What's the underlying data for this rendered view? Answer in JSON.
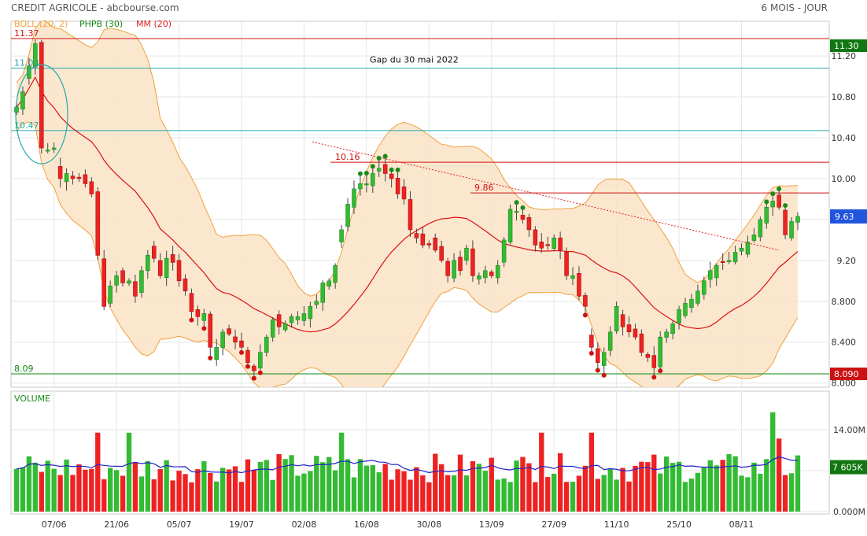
{
  "header": {
    "title": "CREDIT AGRICOLE - abcbourse.com",
    "period": "6 MOIS - JOUR"
  },
  "legend": [
    {
      "label": "BOLL (20, 2)",
      "color": "#f5a53d"
    },
    {
      "label": "PHPB (30)",
      "color": "#1a8a1a"
    },
    {
      "label": "MM (20)",
      "color": "#dd2222"
    }
  ],
  "colors": {
    "up": "#33bb33",
    "down": "#ee2222",
    "boll_fill": "#fae3c6",
    "boll_line": "#f0a040",
    "ma": "#dd1111",
    "vol_ma": "#2222cc",
    "resistance": "#cc1111",
    "support": "#118811",
    "gap": "#22aaaa"
  },
  "chart_data": [
    {
      "type": "candlestick",
      "title": "",
      "ylim": [
        8.09,
        11.37
      ],
      "y_ticks": [
        "8.000",
        "8.400",
        "8.800",
        "9.20",
        "9.60",
        "10.00",
        "10.40",
        "10.80",
        "11.20"
      ],
      "x_ticks": [
        "07/06",
        "21/06",
        "05/07",
        "19/07",
        "02/08",
        "16/08",
        "30/08",
        "13/09",
        "27/09",
        "11/10",
        "25/10",
        "08/11"
      ],
      "price_labels": {
        "last": "9.63",
        "high_line": "11.30",
        "low_line": "8.090"
      },
      "levels": [
        {
          "label": "11.37",
          "value": 11.37,
          "color": "#cc1111"
        },
        {
          "label": "11.08",
          "value": 11.08,
          "color": "#22aaaa"
        },
        {
          "label": "10.47",
          "value": 10.47,
          "color": "#22aaaa"
        },
        {
          "label": "10.16",
          "value": 10.16,
          "color": "#cc1111"
        },
        {
          "label": "9.86",
          "value": 9.86,
          "color": "#cc1111"
        },
        {
          "label": "8.09",
          "value": 8.09,
          "color": "#118811"
        }
      ],
      "annotations": [
        "Gap du 30 mai 2022"
      ],
      "series_close": [
        10.7,
        10.85,
        11.1,
        11.32,
        10.3,
        10.28,
        10.3,
        10.0,
        10.05,
        10.0,
        10.0,
        9.95,
        9.85,
        9.25,
        8.75,
        8.95,
        9.05,
        8.98,
        9.0,
        8.85,
        9.1,
        9.25,
        9.22,
        9.05,
        9.22,
        9.18,
        9.0,
        8.9,
        8.7,
        8.65,
        8.68,
        8.35,
        8.35,
        8.5,
        8.48,
        8.4,
        8.35,
        8.2,
        8.12,
        8.3,
        8.45,
        8.62,
        8.55,
        8.58,
        8.65,
        8.65,
        8.68,
        8.75,
        8.8,
        8.98,
        9.0,
        9.15,
        9.5,
        9.75,
        9.9,
        9.95,
        9.95,
        10.05,
        10.1,
        10.05,
        10.0,
        9.85,
        9.8,
        9.5,
        9.42,
        9.35,
        9.35,
        9.3,
        9.2,
        9.05,
        9.2,
        9.1,
        9.32,
        9.05,
        9.05,
        9.1,
        9.05,
        9.15,
        9.4,
        9.7,
        9.68,
        9.6,
        9.5,
        9.35,
        9.32,
        9.35,
        9.42,
        9.3,
        9.05,
        9.05,
        8.85,
        8.75,
        8.35,
        8.2,
        8.3,
        8.5,
        8.75,
        8.55,
        8.5,
        8.45,
        8.3,
        8.25,
        8.15,
        8.45,
        8.5,
        8.58,
        8.72,
        8.78,
        8.82,
        8.9,
        9.0,
        9.1,
        9.15,
        9.18,
        9.2,
        9.28,
        9.32,
        9.38,
        9.45,
        9.6,
        9.72,
        9.78,
        9.72,
        9.45,
        9.58,
        9.63
      ],
      "volume": {
        "title": "VOLUME",
        "ylim": [
          0,
          14.0
        ],
        "y_ticks": [
          "0.000M",
          "7.000M",
          "14.00M"
        ],
        "last_label": "7 605K"
      }
    }
  ]
}
